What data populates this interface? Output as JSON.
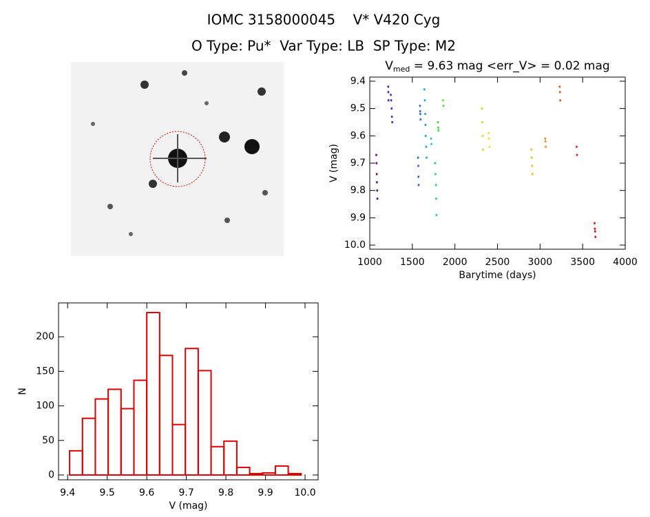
{
  "header": {
    "line1": "IOMC 3158000045    V* V420 Cyg",
    "line2": "O Type: Pu*  Var Type: LB  SP Type: M2"
  },
  "chart_data": [
    {
      "type": "scatter",
      "title": {
        "symbol": "V",
        "subscript": "med",
        "text": " = 9.63 mag <err_V> = 0.02 mag"
      },
      "x_label": "Barytime (days)",
      "y_label": "V (mag)",
      "xlim": [
        1000,
        4000
      ],
      "xticks": [
        1000,
        1500,
        2000,
        2500,
        3000,
        3500,
        4000
      ],
      "ylim": [
        9.385,
        10.015
      ],
      "y_inverted": true,
      "yticks": [
        9.4,
        9.5,
        9.6,
        9.7,
        9.8,
        9.9,
        {
          "value": 10,
          "label": "10.0"
        }
      ],
      "series": [
        {
          "color": "#5a0f7a",
          "x": [
            1075,
            1078,
            1080,
            1082,
            1085,
            1088
          ],
          "values": [
            9.67,
            9.7,
            9.74,
            9.77,
            9.8,
            9.83
          ]
        },
        {
          "color": "#4b1fa0",
          "x": [
            1215,
            1216,
            1218
          ],
          "values": [
            9.42,
            9.44,
            9.47
          ]
        },
        {
          "color": "#3a2fc0",
          "x": [
            1245,
            1250,
            1255,
            1258,
            1262
          ],
          "values": [
            9.45,
            9.47,
            9.5,
            9.53,
            9.55
          ]
        },
        {
          "color": "#2f5fc0",
          "x": [
            1565,
            1568,
            1570,
            1572
          ],
          "values": [
            9.68,
            9.71,
            9.75,
            9.78
          ]
        },
        {
          "color": "#2a70d0",
          "x": [
            1588,
            1590,
            1592,
            1595
          ],
          "values": [
            9.49,
            9.51,
            9.52,
            9.54
          ]
        },
        {
          "color": "#20a0e0",
          "x": [
            1640,
            1645,
            1650,
            1652,
            1655,
            1660,
            1665
          ],
          "values": [
            9.43,
            9.47,
            9.52,
            9.56,
            9.6,
            9.64,
            9.68
          ]
        },
        {
          "color": "#20c0c0",
          "x": [
            1718,
            1722
          ],
          "values": [
            9.61,
            9.63
          ]
        },
        {
          "color": "#20d080",
          "x": [
            1765,
            1770,
            1775,
            1778,
            1782
          ],
          "values": [
            9.7,
            9.74,
            9.78,
            9.83,
            9.89
          ]
        },
        {
          "color": "#30e040",
          "x": [
            1798,
            1802,
            1805
          ],
          "values": [
            9.55,
            9.57,
            9.58
          ]
        },
        {
          "color": "#60e030",
          "x": [
            1858,
            1862
          ],
          "values": [
            9.47,
            9.49
          ]
        },
        {
          "color": "#c0e020",
          "x": [
            2315,
            2320,
            2325,
            2328
          ],
          "values": [
            9.5,
            9.55,
            9.6,
            9.65
          ]
        },
        {
          "color": "#f0e020",
          "x": [
            2395,
            2400,
            2405
          ],
          "values": [
            9.59,
            9.61,
            9.64
          ]
        },
        {
          "color": "#e0c020",
          "x": [
            2895,
            2900,
            2905,
            2908
          ],
          "values": [
            9.65,
            9.68,
            9.71,
            9.74
          ]
        },
        {
          "color": "#e09020",
          "x": [
            3058,
            3062,
            3065
          ],
          "values": [
            9.61,
            9.62,
            9.64
          ]
        },
        {
          "color": "#d06020",
          "x": [
            3228,
            3232,
            3235
          ],
          "values": [
            9.42,
            9.44,
            9.47
          ]
        },
        {
          "color": "#e02020",
          "x": [
            3428,
            3432
          ],
          "values": [
            9.64,
            9.67
          ]
        },
        {
          "color": "#d01010",
          "x": [
            3638,
            3642,
            3645,
            3648
          ],
          "values": [
            9.92,
            9.94,
            9.95,
            9.97
          ]
        }
      ]
    },
    {
      "type": "histogram",
      "color": "#dd0000",
      "x_label": "V (mag)",
      "y_label": "N",
      "xlim": [
        9.377,
        10.033
      ],
      "xticks": [
        9.4,
        9.5,
        9.6,
        9.7,
        9.8,
        9.9,
        {
          "value": 10,
          "label": "10.0"
        }
      ],
      "ylim": [
        -7,
        249
      ],
      "yticks": [
        0,
        50,
        100,
        150,
        200
      ],
      "bins": [
        9.405,
        9.4375,
        9.47,
        9.5025,
        9.535,
        9.5675,
        9.6,
        9.6325,
        9.665,
        9.6975,
        9.73,
        9.7625,
        9.795,
        9.8275,
        9.86,
        9.8925,
        9.925,
        9.9575,
        9.99
      ],
      "values": [
        35,
        82,
        110,
        124,
        96,
        137,
        235,
        173,
        73,
        183,
        151,
        41,
        49,
        11,
        2,
        3,
        13,
        2
      ]
    }
  ]
}
